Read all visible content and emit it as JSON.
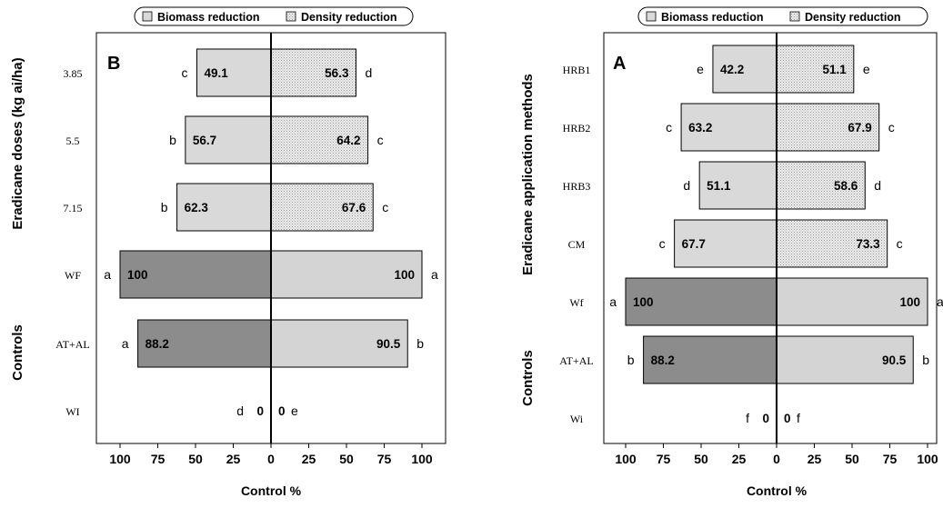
{
  "chart_data": [
    {
      "type": "bar",
      "panel_label": "B",
      "ylabel": "Eradicane doses (kg ai/ha)",
      "ylabel_secondary": "Controls",
      "xlabel": "Control %",
      "xticks": [
        "100",
        "75",
        "50",
        "25",
        "0",
        "25",
        "50",
        "75",
        "100"
      ],
      "xlim": [
        -110,
        110
      ],
      "orientation": "horizontal-diverging",
      "legend": [
        "Biomass reduction",
        "Density reduction"
      ],
      "legend_position": "top",
      "categories": [
        "3.85",
        "5.5",
        "7.15",
        "WF",
        "AT+AL",
        "WI"
      ],
      "series": [
        {
          "name": "Biomass reduction",
          "values": [
            49.1,
            56.7,
            62.3,
            100,
            88.2,
            0
          ],
          "letters": [
            "c",
            "b",
            "b",
            "a",
            "a",
            "d"
          ]
        },
        {
          "name": "Density reduction",
          "values": [
            56.3,
            64.2,
            67.6,
            100,
            90.5,
            0
          ],
          "letters": [
            "d",
            "c",
            "c",
            "a",
            "b",
            "e"
          ]
        }
      ],
      "control_rows": [
        "WF",
        "AT+AL",
        "WI"
      ],
      "value_labels": {
        "biomass": [
          "49.1",
          "56.7",
          "62.3",
          "100",
          "88.2",
          "0"
        ],
        "density": [
          "56.3",
          "64.2",
          "67.6",
          "100",
          "90.5",
          "0"
        ]
      }
    },
    {
      "type": "bar",
      "panel_label": "A",
      "ylabel": "Eradicane application  methods",
      "ylabel_secondary": "Controls",
      "xlabel": "Control %",
      "xticks": [
        "100",
        "75",
        "50",
        "25",
        "0",
        "25",
        "50",
        "75",
        "100"
      ],
      "xlim": [
        -110,
        110
      ],
      "orientation": "horizontal-diverging",
      "legend": [
        "Biomass reduction",
        "Density reduction"
      ],
      "legend_position": "top",
      "categories": [
        "HRB1",
        "HRB2",
        "HRB3",
        "CM",
        "Wf",
        "AT+AL",
        "Wi"
      ],
      "series": [
        {
          "name": "Biomass reduction",
          "values": [
            42.2,
            63.2,
            51.1,
            67.7,
            100,
            88.2,
            0
          ],
          "letters": [
            "e",
            "c",
            "d",
            "c",
            "a",
            "b",
            "f"
          ]
        },
        {
          "name": "Density reduction",
          "values": [
            51.1,
            67.9,
            58.6,
            73.3,
            100,
            90.5,
            0
          ],
          "letters": [
            "e",
            "c",
            "d",
            "c",
            "a",
            "b",
            "f"
          ]
        }
      ],
      "control_rows": [
        "Wf",
        "AT+AL",
        "Wi"
      ],
      "value_labels": {
        "biomass": [
          "42.2",
          "63.2",
          "51.1",
          "67.7",
          "100",
          "88.2",
          "0"
        ],
        "density": [
          "51.1",
          "67.9",
          "58.6",
          "73.3",
          "100",
          "90.5",
          "0"
        ]
      }
    }
  ],
  "colors": {
    "treatment_fill": "#d9d9d9",
    "control_biomass_fill": "#8c8c8c",
    "control_density_fill": "#d4d4d4",
    "stroke": "#000000",
    "hatch": "#9a9a9a"
  }
}
